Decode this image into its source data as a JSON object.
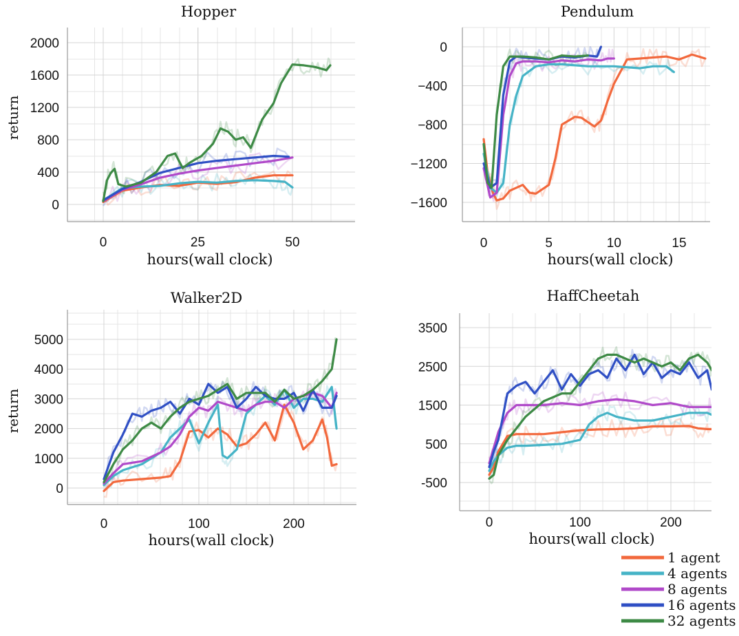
{
  "legend": [
    {
      "label": "1 agent",
      "color": "#f2683c"
    },
    {
      "label": "4 agents",
      "color": "#45b3c6"
    },
    {
      "label": "8 agents",
      "color": "#b049c9"
    },
    {
      "label": "16 agents",
      "color": "#2f4fc4"
    },
    {
      "label": "32 agents",
      "color": "#3d8a45"
    }
  ],
  "chart_data": [
    {
      "type": "line",
      "title": "Hopper",
      "xlabel": "hours(wall clock)",
      "ylabel": "return",
      "xticks": [
        0,
        25,
        50
      ],
      "yticks": [
        0,
        400,
        800,
        1200,
        1600,
        2000
      ],
      "series": [
        {
          "name": "1 agent",
          "color": "#f2683c",
          "x": [
            0,
            5,
            10,
            15,
            20,
            25,
            30,
            35,
            40,
            45,
            50
          ],
          "y": [
            30,
            170,
            210,
            240,
            230,
            270,
            255,
            275,
            330,
            360,
            360
          ]
        },
        {
          "name": "4 agents",
          "color": "#45b3c6",
          "x": [
            0,
            5,
            10,
            15,
            20,
            25,
            30,
            35,
            40,
            45,
            48,
            50
          ],
          "y": [
            50,
            200,
            220,
            230,
            260,
            280,
            270,
            290,
            300,
            290,
            280,
            210
          ]
        },
        {
          "name": "8 agents",
          "color": "#b049c9",
          "x": [
            0,
            5,
            10,
            15,
            20,
            25,
            30,
            35,
            40,
            45,
            50
          ],
          "y": [
            40,
            180,
            250,
            330,
            380,
            420,
            450,
            480,
            510,
            540,
            580
          ]
        },
        {
          "name": "16 agents",
          "color": "#2f4fc4",
          "x": [
            0,
            5,
            10,
            15,
            20,
            25,
            30,
            35,
            40,
            45,
            49
          ],
          "y": [
            50,
            190,
            280,
            390,
            450,
            510,
            540,
            560,
            580,
            600,
            590
          ]
        },
        {
          "name": "32 agents",
          "color": "#3d8a45",
          "x": [
            0,
            1,
            2,
            3,
            4,
            6,
            10,
            14,
            17,
            19,
            21,
            23,
            26,
            29,
            31,
            33,
            35,
            37,
            39,
            42,
            45,
            47,
            50,
            53,
            56,
            59,
            60
          ],
          "y": [
            40,
            300,
            390,
            440,
            250,
            220,
            270,
            400,
            600,
            630,
            450,
            520,
            600,
            750,
            940,
            900,
            800,
            830,
            700,
            1050,
            1250,
            1500,
            1730,
            1720,
            1700,
            1660,
            1720
          ]
        }
      ]
    },
    {
      "type": "line",
      "title": "Pendulum",
      "xlabel": "hours(wall clock)",
      "ylabel": "",
      "xticks": [
        0,
        5,
        10,
        15
      ],
      "yticks": [
        0,
        -400,
        -800,
        -1200,
        -1600
      ],
      "series": [
        {
          "name": "1 agent",
          "color": "#f2683c",
          "x": [
            0,
            0.3,
            0.7,
            1,
            1.5,
            2,
            3,
            3.5,
            4,
            5,
            5.5,
            6,
            7,
            7.5,
            8.5,
            9,
            9.5,
            10,
            11,
            12,
            13,
            14,
            15,
            16,
            17
          ],
          "y": [
            -950,
            -1300,
            -1500,
            -1580,
            -1560,
            -1480,
            -1420,
            -1500,
            -1510,
            -1420,
            -1150,
            -800,
            -720,
            -730,
            -820,
            -760,
            -560,
            -380,
            -130,
            -120,
            -110,
            -100,
            -130,
            -80,
            -120
          ]
        },
        {
          "name": "4 agents",
          "color": "#45b3c6",
          "x": [
            0,
            0.5,
            1,
            1.5,
            2,
            2.5,
            3,
            4,
            5,
            6,
            8,
            10,
            12,
            13,
            14,
            14.6
          ],
          "y": [
            -1100,
            -1450,
            -1500,
            -1400,
            -800,
            -500,
            -300,
            -200,
            -180,
            -180,
            -200,
            -200,
            -220,
            -200,
            -200,
            -260
          ]
        },
        {
          "name": "8 agents",
          "color": "#b049c9",
          "x": [
            0,
            0.5,
            1,
            1.5,
            2,
            2.5,
            3,
            4,
            5,
            6,
            7,
            8,
            9,
            9.5,
            10
          ],
          "y": [
            -1250,
            -1550,
            -1500,
            -700,
            -300,
            -170,
            -150,
            -150,
            -160,
            -140,
            -150,
            -130,
            -140,
            -120,
            -120
          ]
        },
        {
          "name": "16 agents",
          "color": "#2f4fc4",
          "x": [
            0,
            0.5,
            1,
            1.5,
            2,
            2.5,
            3,
            4,
            5,
            6,
            7,
            8,
            8.7,
            9
          ],
          "y": [
            -1200,
            -1450,
            -1400,
            -500,
            -150,
            -100,
            -110,
            -120,
            -130,
            -100,
            -110,
            -90,
            -100,
            0
          ]
        },
        {
          "name": "32 agents",
          "color": "#3d8a45",
          "x": [
            0,
            0.3,
            0.6,
            1,
            1.5,
            2,
            3,
            4,
            5,
            6,
            7,
            8
          ],
          "y": [
            -1000,
            -1400,
            -1450,
            -700,
            -200,
            -100,
            -100,
            -110,
            -130,
            -90,
            -100,
            -90
          ]
        }
      ]
    },
    {
      "type": "line",
      "title": "Walker2D",
      "xlabel": "hours(wall clock)",
      "ylabel": "return",
      "xticks": [
        0,
        100,
        200
      ],
      "yticks": [
        0,
        1000,
        2000,
        3000,
        4000,
        5000
      ],
      "series": [
        {
          "name": "1 agent",
          "color": "#f2683c",
          "x": [
            0,
            10,
            20,
            40,
            60,
            70,
            80,
            90,
            100,
            110,
            120,
            130,
            140,
            150,
            160,
            170,
            180,
            190,
            200,
            210,
            220,
            230,
            235,
            240,
            245
          ],
          "y": [
            -100,
            200,
            250,
            300,
            350,
            400,
            900,
            1900,
            1950,
            1700,
            2000,
            1800,
            1400,
            1500,
            1800,
            2200,
            1600,
            2800,
            2200,
            1300,
            1600,
            2300,
            1700,
            750,
            800
          ]
        },
        {
          "name": "4 agents",
          "color": "#45b3c6",
          "x": [
            0,
            10,
            20,
            40,
            60,
            70,
            80,
            90,
            100,
            110,
            120,
            125,
            130,
            140,
            150,
            160,
            170,
            180,
            190,
            200,
            210,
            220,
            230,
            240,
            245
          ],
          "y": [
            100,
            400,
            600,
            800,
            1200,
            1700,
            2000,
            2300,
            1500,
            2200,
            2800,
            1100,
            1000,
            1300,
            2500,
            2800,
            3100,
            2800,
            3300,
            2700,
            3000,
            3000,
            2900,
            3400,
            2000
          ]
        },
        {
          "name": "8 agents",
          "color": "#b049c9",
          "x": [
            0,
            10,
            20,
            40,
            60,
            70,
            80,
            90,
            100,
            110,
            120,
            130,
            140,
            150,
            160,
            170,
            180,
            190,
            200,
            210,
            220,
            230,
            240,
            245
          ],
          "y": [
            150,
            500,
            800,
            900,
            1200,
            1400,
            1800,
            2400,
            2700,
            2600,
            2900,
            2800,
            2700,
            2600,
            2800,
            2900,
            2900,
            2700,
            3000,
            3100,
            3200,
            3100,
            2700,
            3200
          ]
        },
        {
          "name": "16 agents",
          "color": "#2f4fc4",
          "x": [
            0,
            10,
            20,
            30,
            40,
            50,
            60,
            70,
            80,
            90,
            100,
            110,
            120,
            130,
            140,
            150,
            160,
            170,
            180,
            190,
            200,
            210,
            220,
            230,
            240,
            245
          ],
          "y": [
            300,
            1200,
            1800,
            2500,
            2400,
            2600,
            2700,
            2900,
            2500,
            3000,
            2800,
            3500,
            3200,
            3400,
            2700,
            3000,
            3400,
            3100,
            3000,
            3000,
            3200,
            2600,
            3300,
            2700,
            2700,
            3100
          ]
        },
        {
          "name": "32 agents",
          "color": "#3d8a45",
          "x": [
            0,
            10,
            20,
            30,
            40,
            50,
            60,
            70,
            80,
            90,
            100,
            110,
            120,
            130,
            140,
            150,
            160,
            170,
            180,
            190,
            200,
            210,
            220,
            230,
            240,
            245
          ],
          "y": [
            200,
            800,
            1300,
            1600,
            2000,
            2200,
            2000,
            2400,
            2700,
            2900,
            3000,
            3100,
            3300,
            3500,
            3000,
            3200,
            3200,
            3200,
            2900,
            3300,
            3000,
            3100,
            3300,
            3600,
            4000,
            5000
          ]
        }
      ]
    },
    {
      "type": "line",
      "title": "HaffCheetah",
      "xlabel": "hours(wall clock)",
      "ylabel": "",
      "xticks": [
        0,
        100,
        200
      ],
      "yticks": [
        3500,
        2500,
        1500,
        500,
        -500
      ],
      "series": [
        {
          "name": "1 agent",
          "color": "#f2683c",
          "x": [
            0,
            5,
            10,
            20,
            30,
            40,
            60,
            80,
            100,
            120,
            140,
            160,
            180,
            200,
            220,
            230,
            240,
            245
          ],
          "y": [
            -300,
            -100,
            300,
            700,
            750,
            750,
            750,
            800,
            850,
            870,
            880,
            900,
            950,
            950,
            960,
            900,
            880,
            880
          ]
        },
        {
          "name": "4 agents",
          "color": "#45b3c6",
          "x": [
            0,
            5,
            10,
            20,
            30,
            40,
            60,
            80,
            100,
            110,
            120,
            130,
            140,
            160,
            180,
            200,
            220,
            230,
            240,
            245
          ],
          "y": [
            -200,
            50,
            200,
            400,
            450,
            450,
            470,
            500,
            600,
            1000,
            1200,
            1300,
            1200,
            1100,
            1100,
            1200,
            1300,
            1300,
            1300,
            1250
          ]
        },
        {
          "name": "8 agents",
          "color": "#b049c9",
          "x": [
            0,
            5,
            10,
            20,
            30,
            40,
            60,
            80,
            100,
            120,
            140,
            160,
            180,
            200,
            220,
            240,
            245
          ],
          "y": [
            0,
            400,
            800,
            1300,
            1500,
            1500,
            1500,
            1550,
            1500,
            1600,
            1650,
            1600,
            1500,
            1550,
            1450,
            1450,
            1450
          ]
        },
        {
          "name": "16 agents",
          "color": "#2f4fc4",
          "x": [
            0,
            5,
            10,
            20,
            25,
            30,
            40,
            50,
            60,
            70,
            80,
            90,
            100,
            110,
            120,
            130,
            140,
            150,
            160,
            170,
            180,
            190,
            200,
            210,
            220,
            230,
            240,
            245
          ],
          "y": [
            -100,
            300,
            600,
            1800,
            1900,
            2000,
            2100,
            1800,
            2100,
            2400,
            1900,
            2300,
            2000,
            2300,
            2400,
            2200,
            2700,
            2400,
            2800,
            2300,
            2600,
            2200,
            2400,
            2300,
            2600,
            2200,
            2400,
            1900
          ]
        },
        {
          "name": "32 agents",
          "color": "#3d8a45",
          "x": [
            0,
            5,
            10,
            20,
            30,
            40,
            60,
            80,
            90,
            100,
            110,
            120,
            130,
            140,
            150,
            160,
            170,
            180,
            190,
            200,
            210,
            220,
            230,
            240,
            245
          ],
          "y": [
            -400,
            -300,
            200,
            600,
            900,
            1200,
            1600,
            1800,
            1800,
            2100,
            2400,
            2700,
            2800,
            2800,
            2700,
            2600,
            2700,
            2600,
            2500,
            2600,
            2400,
            2700,
            2800,
            2600,
            2400
          ]
        }
      ]
    }
  ]
}
